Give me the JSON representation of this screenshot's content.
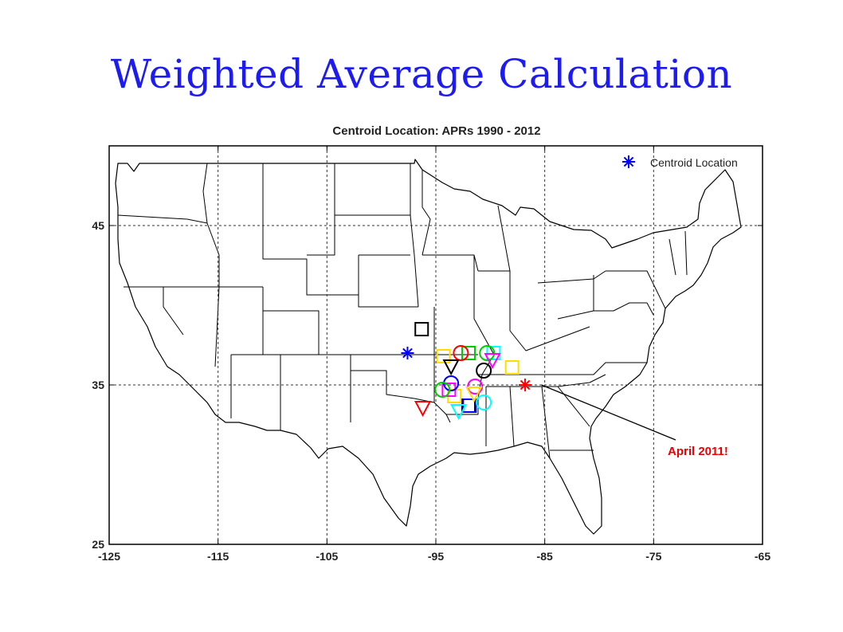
{
  "slide": {
    "title": "Weighted Average Calculation"
  },
  "chart_data": {
    "type": "scatter",
    "title": "Centroid Location: APRs 1990 - 2012",
    "xlabel": "",
    "ylabel": "",
    "xlim": [
      -125,
      -65
    ],
    "ylim": [
      25,
      50
    ],
    "x_ticks": [
      -125,
      -115,
      -105,
      -95,
      -85,
      -75,
      -65
    ],
    "y_ticks": [
      25,
      35,
      45
    ],
    "grid": true,
    "legend": {
      "placement": "top-right",
      "entries": [
        {
          "label": "Centroid Location",
          "marker": "asterisk",
          "color": "#0000ff"
        }
      ]
    },
    "series": [
      {
        "marker": "asterisk",
        "color": "#0000ff",
        "points": [
          [
            -97.6,
            37.0
          ]
        ]
      },
      {
        "marker": "asterisk",
        "color": "#ff0000",
        "points": [
          [
            -86.8,
            35.0
          ]
        ]
      },
      {
        "marker": "square",
        "color": "#000000",
        "points": [
          [
            -96.3,
            38.5
          ],
          [
            -92.0,
            33.7
          ]
        ]
      },
      {
        "marker": "square",
        "color": "#00cc00",
        "points": [
          [
            -92.0,
            37.0
          ]
        ]
      },
      {
        "marker": "square",
        "color": "#ffdd00",
        "points": [
          [
            -94.3,
            36.8
          ],
          [
            -88.0,
            36.1
          ],
          [
            -93.3,
            34.3
          ]
        ]
      },
      {
        "marker": "square",
        "color": "#00ffff",
        "points": [
          [
            -89.7,
            37.0
          ]
        ]
      },
      {
        "marker": "square",
        "color": "#ff00ff",
        "points": [
          [
            -93.8,
            34.7
          ]
        ]
      },
      {
        "marker": "square",
        "color": "#0000ff",
        "points": [
          [
            -91.9,
            33.7
          ]
        ]
      },
      {
        "marker": "circle",
        "color": "#ff0000",
        "points": [
          [
            -92.7,
            37.0
          ]
        ]
      },
      {
        "marker": "circle",
        "color": "#00cc00",
        "points": [
          [
            -90.3,
            37.0
          ]
        ]
      },
      {
        "marker": "circle",
        "color": "#000000",
        "points": [
          [
            -90.6,
            35.9
          ]
        ]
      },
      {
        "marker": "circle",
        "color": "#0000ff",
        "points": [
          [
            -93.6,
            35.1
          ]
        ]
      },
      {
        "marker": "circle",
        "color": "#ff00ff",
        "points": [
          [
            -91.4,
            34.9
          ]
        ]
      },
      {
        "marker": "circle",
        "color": "#00ffff",
        "points": [
          [
            -90.6,
            33.9
          ]
        ]
      },
      {
        "marker": "circle",
        "color": "#00cc00",
        "points": [
          [
            -94.4,
            34.7
          ]
        ]
      },
      {
        "marker": "triangle-down",
        "color": "#ff0000",
        "points": [
          [
            -96.2,
            33.6
          ]
        ]
      },
      {
        "marker": "triangle-down",
        "color": "#000000",
        "points": [
          [
            -93.6,
            36.2
          ]
        ]
      },
      {
        "marker": "triangle-down",
        "color": "#ff00ff",
        "points": [
          [
            -89.8,
            36.6
          ]
        ]
      },
      {
        "marker": "triangle-down",
        "color": "#00ffff",
        "points": [
          [
            -92.9,
            33.4
          ]
        ]
      },
      {
        "marker": "triangle-down",
        "color": "#ffdd00",
        "points": [
          [
            -91.5,
            34.5
          ]
        ]
      }
    ],
    "annotation": {
      "text": "April 2011!",
      "color": "#ee0000",
      "points_to": [
        -85.3,
        35.0
      ]
    }
  }
}
